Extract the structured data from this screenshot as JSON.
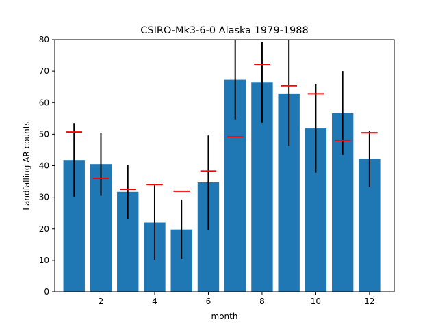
{
  "chart_data": {
    "type": "bar",
    "title": "CSIRO-Mk3-6-0 Alaska 1979-1988",
    "xlabel": "month",
    "ylabel": "Landfalling AR counts",
    "x": [
      1,
      2,
      3,
      4,
      5,
      6,
      7,
      8,
      9,
      10,
      11,
      12
    ],
    "values": [
      41.8,
      40.5,
      31.7,
      22.0,
      19.8,
      34.7,
      67.3,
      66.5,
      62.9,
      51.8,
      56.6,
      42.2
    ],
    "error_low": [
      30.2,
      30.5,
      23.2,
      10.1,
      10.4,
      19.7,
      54.7,
      53.6,
      46.3,
      37.8,
      43.4,
      33.3
    ],
    "error_high": [
      53.5,
      50.5,
      40.3,
      33.8,
      29.3,
      49.6,
      80.0,
      79.2,
      80.0,
      65.9,
      70.0,
      51.0
    ],
    "reference_values": [
      50.7,
      36.0,
      32.5,
      34.0,
      31.9,
      38.3,
      49.2,
      72.2,
      65.3,
      62.8,
      47.9,
      50.5
    ],
    "xlim": [
      0.28,
      12.92
    ],
    "ylim": [
      0,
      80
    ],
    "xticks": [
      2,
      4,
      6,
      8,
      10,
      12
    ],
    "yticks": [
      0,
      10,
      20,
      30,
      40,
      50,
      60,
      70,
      80
    ],
    "grid": false,
    "colors": {
      "bar": "#1f77b4",
      "error": "#000000",
      "reference": "#ff0000"
    }
  }
}
